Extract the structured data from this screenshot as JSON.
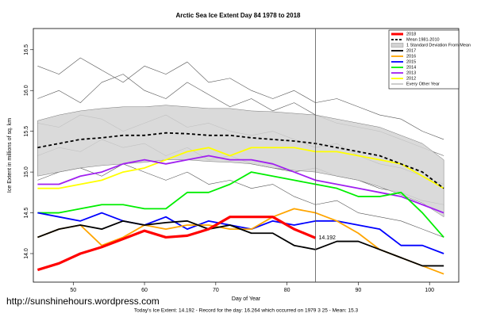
{
  "chart_data": {
    "type": "line",
    "title": "Arctic Sea Ice Extent Day 84 1978 to 2018",
    "x_label": "Day of Year",
    "y_label": "Ice Extent in millions of sq. km",
    "watermark": "http://sunshinehours.wordpress.com",
    "footer": "Today's Ice Extent: 14.192 -  Record for the day: 16.264 which occurred on 1979 3 25  -  Mean: 15.3",
    "annotation": "14.192",
    "vline": 84,
    "xlim": [
      44.4,
      104.1
    ],
    "xticks": [
      50,
      60,
      70,
      80,
      90,
      100
    ],
    "ylim": [
      13.65,
      16.76
    ],
    "yticks": [
      {
        "value": 14,
        "label": "14.0"
      },
      {
        "value": 14.5,
        "label": "14.5"
      },
      {
        "value": 15,
        "label": "15.0"
      },
      {
        "value": 15.5,
        "label": "15.5"
      },
      {
        "value": 16,
        "label": "16.0"
      },
      {
        "value": 16.5,
        "label": "16.5"
      }
    ],
    "x": [
      45,
      48,
      51,
      54,
      57,
      60,
      63,
      66,
      69,
      72,
      75,
      78,
      81,
      84,
      87,
      90,
      93,
      96,
      99,
      102
    ],
    "series": [
      {
        "name": "2018",
        "color": "#ff0000",
        "values": [
          13.8,
          13.88,
          14.0,
          14.08,
          14.18,
          14.28,
          14.2,
          14.22,
          14.3,
          14.45,
          14.45,
          14.45,
          14.3,
          14.192,
          null,
          null,
          null,
          null,
          null,
          null
        ]
      },
      {
        "name": "Mean 1981-2010",
        "color": "#000000",
        "dash": true,
        "values": [
          15.3,
          15.35,
          15.4,
          15.42,
          15.45,
          15.45,
          15.48,
          15.47,
          15.45,
          15.45,
          15.42,
          15.4,
          15.38,
          15.35,
          15.3,
          15.25,
          15.2,
          15.1,
          15.0,
          14.8
        ]
      },
      {
        "name": "1 Standard Deviation From Mean",
        "color": "#d3d3d3",
        "lower": [
          14.95,
          15.0,
          15.05,
          15.08,
          15.1,
          15.12,
          15.15,
          15.15,
          15.13,
          15.12,
          15.1,
          15.05,
          15.02,
          15.0,
          14.95,
          14.9,
          14.82,
          14.72,
          14.62,
          14.45
        ],
        "upper": [
          15.63,
          15.7,
          15.75,
          15.78,
          15.8,
          15.8,
          15.82,
          15.8,
          15.78,
          15.78,
          15.75,
          15.74,
          15.72,
          15.7,
          15.65,
          15.6,
          15.55,
          15.45,
          15.35,
          15.15
        ]
      },
      {
        "name": "2017",
        "color": "#000000",
        "values": [
          14.2,
          14.3,
          14.35,
          14.3,
          14.4,
          14.35,
          14.38,
          14.4,
          14.3,
          14.35,
          14.25,
          14.25,
          14.1,
          14.05,
          14.15,
          14.15,
          14.05,
          13.95,
          13.85,
          13.85
        ]
      },
      {
        "name": "2016",
        "color": "#ffa500",
        "values": [
          14.2,
          14.3,
          14.35,
          14.1,
          14.2,
          14.35,
          14.3,
          14.35,
          14.35,
          14.3,
          14.3,
          14.45,
          14.55,
          14.5,
          14.4,
          14.25,
          14.05,
          13.95,
          13.85,
          13.75
        ]
      },
      {
        "name": "2015",
        "color": "#0000ff",
        "values": [
          14.5,
          14.45,
          14.4,
          14.5,
          14.4,
          14.35,
          14.45,
          14.3,
          14.4,
          14.35,
          14.3,
          14.4,
          14.35,
          14.4,
          14.4,
          14.35,
          14.3,
          14.1,
          14.1,
          14.0
        ]
      },
      {
        "name": "2014",
        "color": "#00ee00",
        "values": [
          14.5,
          14.5,
          14.55,
          14.6,
          14.6,
          14.55,
          14.55,
          14.75,
          14.75,
          14.85,
          15.0,
          14.95,
          14.9,
          14.85,
          14.8,
          14.7,
          14.7,
          14.75,
          14.5,
          14.2
        ]
      },
      {
        "name": "2013",
        "color": "#a020f0",
        "values": [
          14.85,
          14.85,
          14.95,
          15.0,
          15.1,
          15.15,
          15.1,
          15.15,
          15.2,
          15.15,
          15.15,
          15.1,
          15.0,
          14.9,
          14.85,
          14.8,
          14.75,
          14.7,
          14.6,
          14.5
        ]
      },
      {
        "name": "2012",
        "color": "#ffff00",
        "values": [
          14.8,
          14.8,
          14.85,
          14.9,
          15.0,
          15.05,
          15.15,
          15.25,
          15.3,
          15.2,
          15.3,
          15.3,
          15.3,
          15.25,
          15.25,
          15.2,
          15.15,
          15.1,
          14.95,
          14.8
        ]
      },
      {
        "name": "Every Other Year",
        "color": "#555555",
        "lines": [
          [
            15.9,
            16.0,
            15.85,
            16.1,
            16.2,
            16.0,
            15.9,
            16.1,
            15.95,
            15.8,
            15.9,
            15.75,
            15.85,
            15.7,
            15.6,
            15.55,
            15.5,
            15.4,
            15.3,
            15.2
          ],
          [
            15.6,
            15.55,
            15.7,
            15.65,
            15.5,
            15.6,
            15.7,
            15.55,
            15.6,
            15.5,
            15.45,
            15.5,
            15.4,
            15.3,
            15.35,
            15.2,
            15.1,
            15.05,
            14.95,
            14.85
          ],
          [
            15.2,
            15.3,
            15.25,
            15.4,
            15.3,
            15.35,
            15.2,
            15.3,
            15.15,
            15.2,
            15.1,
            15.05,
            15.0,
            15.05,
            14.95,
            14.9,
            14.8,
            14.75,
            14.65,
            14.6
          ],
          [
            16.3,
            16.2,
            16.4,
            16.25,
            16.1,
            16.3,
            16.2,
            16.35,
            16.1,
            16.15,
            16.0,
            15.9,
            16.0,
            15.85,
            15.9,
            15.8,
            15.7,
            15.65,
            15.5,
            15.4
          ],
          [
            14.9,
            15.0,
            15.05,
            14.95,
            15.1,
            15.0,
            14.9,
            15.0,
            14.85,
            14.9,
            14.8,
            14.85,
            14.7,
            14.6,
            14.65,
            14.5,
            14.45,
            14.4,
            14.3,
            14.2
          ]
        ]
      }
    ]
  }
}
